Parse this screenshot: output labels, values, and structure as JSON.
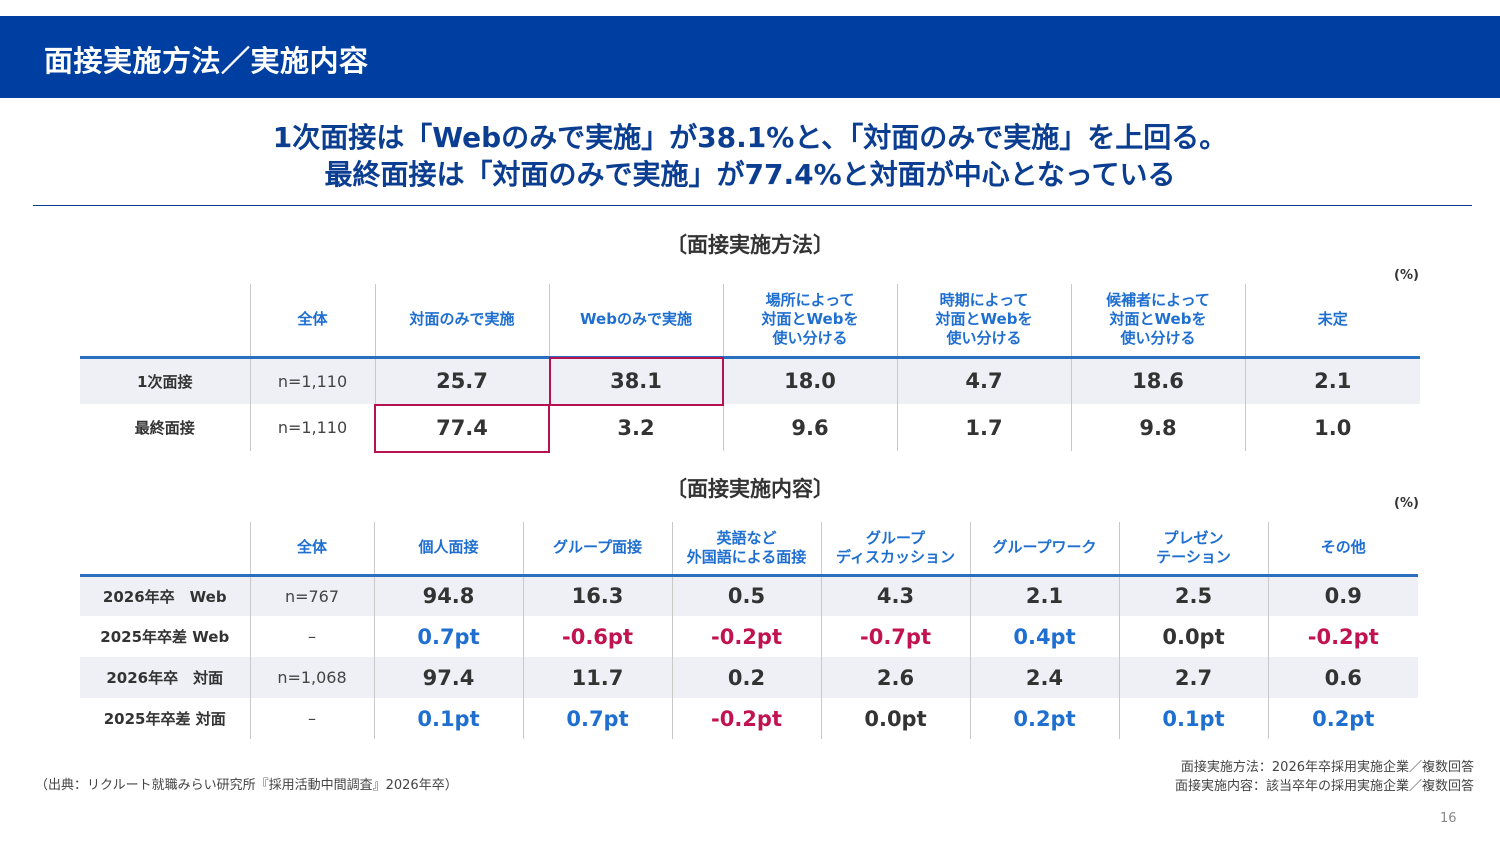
{
  "header": {
    "title": "面接実施方法／実施内容"
  },
  "headline": {
    "line1": "1次面接は「Webのみで実施」が38.1%と、「対面のみで実施」を上回る。",
    "line2": "最終面接は「対面のみで実施」が77.4%と対面が中心となっている"
  },
  "methods": {
    "title": "〔面接実施方法〕",
    "unit": "(%)",
    "columns": [
      "全体",
      "対面のみで実施",
      "Webのみで実施",
      "場所によって\n対面とWebを\n使い分ける",
      "時期によって\n対面とWebを\n使い分ける",
      "候補者によって\n対面とWebを\n使い分ける",
      "未定"
    ],
    "rows": [
      {
        "label": "1次面接",
        "n": "n=1,110",
        "values": [
          "25.7",
          "38.1",
          "18.0",
          "4.7",
          "18.6",
          "2.1"
        ]
      },
      {
        "label": "最終面接",
        "n": "n=1,110",
        "values": [
          "77.4",
          "3.2",
          "9.6",
          "1.7",
          "9.8",
          "1.0"
        ]
      }
    ]
  },
  "contents": {
    "title": "〔面接実施内容〕",
    "unit": "(%)",
    "columns": [
      "全体",
      "個人面接",
      "グループ面接",
      "英語など\n外国語による面接",
      "グループ\nディスカッション",
      "グループワーク",
      "プレゼン\nテーション",
      "その他"
    ],
    "rows": [
      {
        "label": "2026年卒　Web",
        "n": "n=767",
        "values": [
          "94.8",
          "16.3",
          "0.5",
          "4.3",
          "2.1",
          "2.5",
          "0.9"
        ]
      },
      {
        "label": "2025年卒差 Web",
        "n": "–",
        "values": [
          "0.7pt",
          "-0.6pt",
          "-0.2pt",
          "-0.7pt",
          "0.4pt",
          "0.0pt",
          "-0.2pt"
        ]
      },
      {
        "label": "2026年卒　対面",
        "n": "n=1,068",
        "values": [
          "97.4",
          "11.7",
          "0.2",
          "2.6",
          "2.4",
          "2.7",
          "0.6"
        ]
      },
      {
        "label": "2025年卒差 対面",
        "n": "–",
        "values": [
          "0.1pt",
          "0.7pt",
          "-0.2pt",
          "0.0pt",
          "0.2pt",
          "0.1pt",
          "0.2pt"
        ]
      }
    ]
  },
  "footnotes": {
    "source": "（出典：リクルート就職みらい研究所『採用活動中間調査』2026年卒）",
    "note1": "面接実施方法：2026年卒採用実施企業／複数回答",
    "note2": "面接実施内容：該当卒年の採用実施企業／複数回答"
  },
  "page_number": "16",
  "colors": {
    "brand": "#003fa2",
    "positive": "#1f6fd1",
    "negative": "#c0134f",
    "highlight": "#b8114f"
  }
}
